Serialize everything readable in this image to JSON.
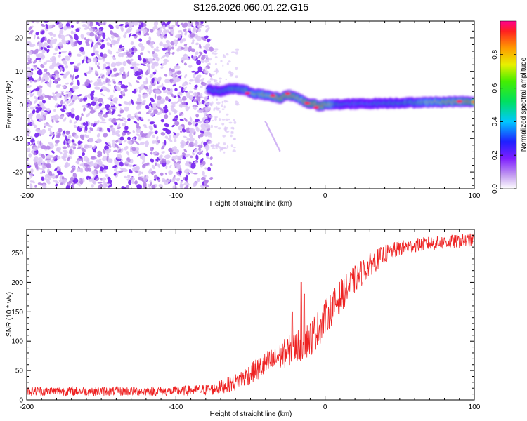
{
  "title": "S126.2026.060.01.22.G15",
  "chart_data": [
    {
      "type": "heatmap",
      "xlabel": "Height of straight line (km)",
      "ylabel": "Frequency (Hz)",
      "xlim": [
        -200,
        100
      ],
      "ylim": [
        -25,
        25
      ],
      "xticks": [
        "-200",
        "-100",
        "0",
        "100"
      ],
      "yticks": [
        "-20",
        "-10",
        "0",
        "10",
        "20"
      ],
      "colorbar": {
        "label": "Normalized spectral amplitude",
        "ticks": [
          "0.0",
          "0.2",
          "0.4",
          "0.6",
          "0.8"
        ],
        "range": [
          0,
          1
        ]
      },
      "noise_region": {
        "x_from": -200,
        "x_to": -80
      },
      "ridge": {
        "x": [
          -78,
          -70,
          -62,
          -55,
          -48,
          -42,
          -36,
          -30,
          -25,
          -20,
          -16,
          -12,
          -8,
          -4,
          0,
          10,
          20,
          30,
          40,
          50,
          60,
          70,
          80,
          90,
          100
        ],
        "freq": [
          4.5,
          4,
          5,
          4.5,
          3.5,
          3,
          2.5,
          2,
          3,
          2.5,
          1.5,
          0.5,
          0.5,
          -0.5,
          0,
          0.2,
          0.3,
          0.4,
          0.5,
          0.6,
          0.7,
          0.8,
          0.9,
          1.0,
          1.0
        ],
        "amplitude": [
          0.45,
          0.5,
          0.55,
          0.6,
          0.7,
          0.75,
          0.8,
          0.85,
          0.9,
          0.85,
          0.8,
          0.9,
          0.95,
          0.95,
          0.9,
          0.5,
          0.45,
          0.45,
          0.5,
          0.55,
          0.6,
          0.7,
          0.8,
          0.85,
          0.9
        ]
      },
      "streak": {
        "x": [
          -40,
          -30
        ],
        "freq": [
          -5,
          -14
        ]
      }
    },
    {
      "type": "line",
      "xlabel": "Height of straight line (km)",
      "ylabel": "SNR (10 * v/v)",
      "xlim": [
        -200,
        100
      ],
      "ylim": [
        0,
        290
      ],
      "xticks": [
        "-200",
        "-100",
        "0",
        "100"
      ],
      "yticks": [
        "0",
        "50",
        "100",
        "150",
        "200",
        "250"
      ],
      "color": "#ee2222",
      "series": [
        {
          "name": "SNR",
          "x": [
            -200,
            -150,
            -100,
            -75,
            -60,
            -50,
            -40,
            -30,
            -20,
            -10,
            -5,
            0,
            10,
            20,
            30,
            40,
            50,
            60,
            70,
            80,
            90,
            100
          ],
          "y": [
            15,
            15,
            15,
            18,
            30,
            45,
            60,
            75,
            90,
            105,
            120,
            140,
            175,
            205,
            230,
            248,
            258,
            263,
            266,
            268,
            270,
            272
          ],
          "noise_amplitude": [
            8,
            8,
            8,
            10,
            15,
            18,
            22,
            24,
            28,
            32,
            32,
            30,
            28,
            24,
            20,
            16,
            13,
            12,
            12,
            12,
            12,
            12
          ]
        }
      ],
      "spikes": [
        {
          "x": -16,
          "y": 200
        },
        {
          "x": -14,
          "y": 180
        },
        {
          "x": -22,
          "y": 150
        }
      ]
    }
  ]
}
